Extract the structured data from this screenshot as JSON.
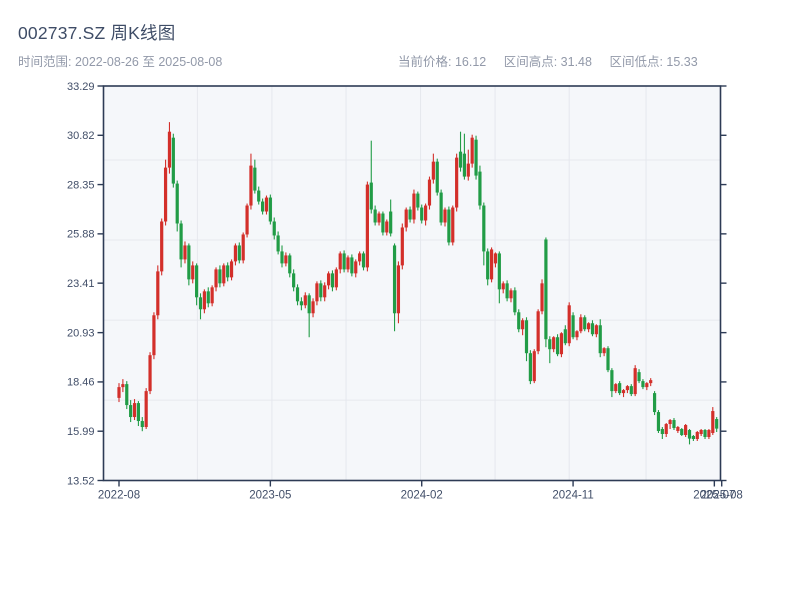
{
  "header": {
    "title": "002737.SZ 周K线图",
    "subtitle": "时间范围: 2022-08-26 至 2025-08-08",
    "stats": [
      "当前价格: 16.12",
      "区间高点: 31.48",
      "区间低点: 15.33"
    ]
  },
  "colors": {
    "up": "#d32f2a",
    "down": "#219c46",
    "plot_bg": "#f5f7fa",
    "grid": "#e6e8ee",
    "spine": "#2d3b55",
    "tick_label": "#414e68",
    "title_text": "#3e4c66",
    "muted_text": "#9299a9"
  },
  "chart_data": {
    "type": "candlestick",
    "symbol": "002737.SZ",
    "period": "weekly",
    "title": "002737.SZ 周K线图",
    "date_start": "2022-08-26",
    "date_end": "2025-08-08",
    "current_price": 16.12,
    "range_high": 31.48,
    "range_low": 15.33,
    "up_color_means": "close >= open (red, CN convention)",
    "ylim": [
      13.52,
      33.29
    ],
    "y_ticks": [
      33.29,
      30.82,
      28.35,
      25.88,
      23.41,
      20.93,
      18.46,
      15.99,
      13.52
    ],
    "x_ticks": [
      {
        "label": "2022-08",
        "week": 0
      },
      {
        "label": "2023-05",
        "week": 39
      },
      {
        "label": "2024-02",
        "week": 78
      },
      {
        "label": "2024-11",
        "week": 117
      },
      {
        "label": "2025-07",
        "week": 153.4
      },
      {
        "label": "2025-08",
        "week": 155.3
      }
    ],
    "grid_h_values": [
      29.58,
      25.57,
      21.56,
      17.55
    ],
    "grid_v_weeks": [
      20.2,
      39.4,
      58.5,
      77.7,
      96.9,
      116.0,
      135.8
    ],
    "candles_format": [
      "open",
      "high",
      "low",
      "close"
    ],
    "candles": [
      [
        17.66,
        18.4,
        17.45,
        18.2
      ],
      [
        18.2,
        18.6,
        17.95,
        18.35
      ],
      [
        18.35,
        18.5,
        17.1,
        17.3
      ],
      [
        17.3,
        17.55,
        16.45,
        16.7
      ],
      [
        16.7,
        17.6,
        16.55,
        17.4
      ],
      [
        17.4,
        17.5,
        16.25,
        16.5
      ],
      [
        16.5,
        16.7,
        15.99,
        16.2
      ],
      [
        16.2,
        18.15,
        16.1,
        18.0
      ],
      [
        18.0,
        19.95,
        17.85,
        19.8
      ],
      [
        19.8,
        21.95,
        19.6,
        21.8
      ],
      [
        21.8,
        24.3,
        21.6,
        24.0
      ],
      [
        24.0,
        26.65,
        23.8,
        26.5
      ],
      [
        26.5,
        29.6,
        26.3,
        29.2
      ],
      [
        29.2,
        31.48,
        28.9,
        31.0
      ],
      [
        30.7,
        30.9,
        28.2,
        28.4
      ],
      [
        28.4,
        28.55,
        26.0,
        26.4
      ],
      [
        26.4,
        26.55,
        24.2,
        24.6
      ],
      [
        24.6,
        25.5,
        24.4,
        25.3
      ],
      [
        25.3,
        25.4,
        23.3,
        23.6
      ],
      [
        23.6,
        24.5,
        23.4,
        24.3
      ],
      [
        24.3,
        24.4,
        22.3,
        22.7
      ],
      [
        22.7,
        22.9,
        21.6,
        22.1
      ],
      [
        22.1,
        23.1,
        21.9,
        23.0
      ],
      [
        23.0,
        23.2,
        22.2,
        22.4
      ],
      [
        22.4,
        23.3,
        22.25,
        23.2
      ],
      [
        23.2,
        24.2,
        23.0,
        24.1
      ],
      [
        24.1,
        24.3,
        23.2,
        23.4
      ],
      [
        23.4,
        24.4,
        23.25,
        24.3
      ],
      [
        24.3,
        24.45,
        23.5,
        23.7
      ],
      [
        23.7,
        24.6,
        23.55,
        24.5
      ],
      [
        24.5,
        25.4,
        24.3,
        25.3
      ],
      [
        25.3,
        25.45,
        24.4,
        24.55
      ],
      [
        24.55,
        25.95,
        24.4,
        25.85
      ],
      [
        25.85,
        27.4,
        25.7,
        27.3
      ],
      [
        27.3,
        29.9,
        27.1,
        29.3
      ],
      [
        29.2,
        29.6,
        27.9,
        28.05
      ],
      [
        28.05,
        28.25,
        27.35,
        27.5
      ],
      [
        27.5,
        27.65,
        26.85,
        27.0
      ],
      [
        27.0,
        27.8,
        26.85,
        27.7
      ],
      [
        27.7,
        27.85,
        26.35,
        26.5
      ],
      [
        26.5,
        26.7,
        25.6,
        25.8
      ],
      [
        25.8,
        26.0,
        24.85,
        25.0
      ],
      [
        25.0,
        25.3,
        24.2,
        24.4
      ],
      [
        24.4,
        24.95,
        24.25,
        24.8
      ],
      [
        24.8,
        24.9,
        23.7,
        23.9
      ],
      [
        23.9,
        24.1,
        23.0,
        23.2
      ],
      [
        23.2,
        23.35,
        22.3,
        22.5
      ],
      [
        22.5,
        22.7,
        22.05,
        22.3
      ],
      [
        22.3,
        22.95,
        22.15,
        22.8
      ],
      [
        22.8,
        22.9,
        20.7,
        21.9
      ],
      [
        21.9,
        22.65,
        21.7,
        22.5
      ],
      [
        22.5,
        23.5,
        22.3,
        23.4
      ],
      [
        23.4,
        23.55,
        22.5,
        22.7
      ],
      [
        22.7,
        23.45,
        22.5,
        23.3
      ],
      [
        23.3,
        24.0,
        23.1,
        23.9
      ],
      [
        23.9,
        24.05,
        23.0,
        23.2
      ],
      [
        23.2,
        24.2,
        23.05,
        24.1
      ],
      [
        24.1,
        25.0,
        23.9,
        24.9
      ],
      [
        24.9,
        25.05,
        23.95,
        24.1
      ],
      [
        24.1,
        24.8,
        23.95,
        24.7
      ],
      [
        24.7,
        24.85,
        23.75,
        23.9
      ],
      [
        23.9,
        24.6,
        23.7,
        24.5
      ],
      [
        24.5,
        25.0,
        24.3,
        24.9
      ],
      [
        24.9,
        25.0,
        24.05,
        24.2
      ],
      [
        24.2,
        28.5,
        24.0,
        28.35
      ],
      [
        28.45,
        30.55,
        26.9,
        27.1
      ],
      [
        27.1,
        27.3,
        26.3,
        26.45
      ],
      [
        26.45,
        27.0,
        26.3,
        26.9
      ],
      [
        26.9,
        27.0,
        25.8,
        25.95
      ],
      [
        25.95,
        26.6,
        25.8,
        26.5
      ],
      [
        27.0,
        27.6,
        25.75,
        25.9
      ],
      [
        25.3,
        25.4,
        21.0,
        21.9
      ],
      [
        21.9,
        24.5,
        21.4,
        24.3
      ],
      [
        24.3,
        26.4,
        24.1,
        26.2
      ],
      [
        26.2,
        27.2,
        26.0,
        27.1
      ],
      [
        27.1,
        27.25,
        26.45,
        26.6
      ],
      [
        26.6,
        28.1,
        26.4,
        27.9
      ],
      [
        27.9,
        28.0,
        27.05,
        27.2
      ],
      [
        27.2,
        27.35,
        26.4,
        26.55
      ],
      [
        26.55,
        27.4,
        26.3,
        27.3
      ],
      [
        27.3,
        28.75,
        27.1,
        28.6
      ],
      [
        28.6,
        29.9,
        28.4,
        29.5
      ],
      [
        29.5,
        29.65,
        27.8,
        27.95
      ],
      [
        27.95,
        28.1,
        26.3,
        26.45
      ],
      [
        26.45,
        27.2,
        26.25,
        27.1
      ],
      [
        27.1,
        27.25,
        25.3,
        25.45
      ],
      [
        25.45,
        27.3,
        25.3,
        27.2
      ],
      [
        27.2,
        29.9,
        27.0,
        29.7
      ],
      [
        30.0,
        31.0,
        29.0,
        29.2
      ],
      [
        29.9,
        30.9,
        28.6,
        28.75
      ],
      [
        28.75,
        30.1,
        28.55,
        29.4
      ],
      [
        29.4,
        30.85,
        29.2,
        30.7
      ],
      [
        30.6,
        30.8,
        28.6,
        28.8
      ],
      [
        29.0,
        29.3,
        27.1,
        27.3
      ],
      [
        27.3,
        27.45,
        24.3,
        25.0
      ],
      [
        25.0,
        25.15,
        23.3,
        23.6
      ],
      [
        23.6,
        25.2,
        23.45,
        25.1
      ],
      [
        24.4,
        24.95,
        24.2,
        24.9
      ],
      [
        24.9,
        25.0,
        22.4,
        23.1
      ],
      [
        23.1,
        23.5,
        22.9,
        23.4
      ],
      [
        23.4,
        23.55,
        22.5,
        22.65
      ],
      [
        22.65,
        23.15,
        22.45,
        23.05
      ],
      [
        23.05,
        23.2,
        21.8,
        21.95
      ],
      [
        21.95,
        22.1,
        20.95,
        21.1
      ],
      [
        21.1,
        21.65,
        20.8,
        21.55
      ],
      [
        21.55,
        21.7,
        19.5,
        19.9
      ],
      [
        19.9,
        20.05,
        18.35,
        18.5
      ],
      [
        18.5,
        20.1,
        18.4,
        20.0
      ],
      [
        20.0,
        22.1,
        19.85,
        22.0
      ],
      [
        22.0,
        23.6,
        21.85,
        23.4
      ],
      [
        25.6,
        25.7,
        20.2,
        20.6
      ],
      [
        20.6,
        20.75,
        19.4,
        20.1
      ],
      [
        20.1,
        20.75,
        19.95,
        20.7
      ],
      [
        20.7,
        20.85,
        19.75,
        19.85
      ],
      [
        19.85,
        20.95,
        19.7,
        20.9
      ],
      [
        21.1,
        21.3,
        20.3,
        20.4
      ],
      [
        20.4,
        22.45,
        20.25,
        22.3
      ],
      [
        21.8,
        21.95,
        20.6,
        20.7
      ],
      [
        20.7,
        21.05,
        20.55,
        21.0
      ],
      [
        21.0,
        21.85,
        20.9,
        21.7
      ],
      [
        21.7,
        21.8,
        21.0,
        21.1
      ],
      [
        21.1,
        21.45,
        20.95,
        21.4
      ],
      [
        21.4,
        21.55,
        20.75,
        20.85
      ],
      [
        20.85,
        21.35,
        20.7,
        21.3
      ],
      [
        21.3,
        21.6,
        19.7,
        19.9
      ],
      [
        19.9,
        20.2,
        19.75,
        20.15
      ],
      [
        20.15,
        20.25,
        18.95,
        19.05
      ],
      [
        19.05,
        19.15,
        17.7,
        18.0
      ],
      [
        18.0,
        18.4,
        17.9,
        18.35
      ],
      [
        18.4,
        18.5,
        17.8,
        17.9
      ],
      [
        17.9,
        18.1,
        17.7,
        18.05
      ],
      [
        18.05,
        18.3,
        17.9,
        18.25
      ],
      [
        18.25,
        18.35,
        17.75,
        17.85
      ],
      [
        17.85,
        19.3,
        17.75,
        19.15
      ],
      [
        18.95,
        19.1,
        18.4,
        18.5
      ],
      [
        18.5,
        18.6,
        18.1,
        18.2
      ],
      [
        18.2,
        18.45,
        18.05,
        18.4
      ],
      [
        18.4,
        18.65,
        18.25,
        18.55
      ],
      [
        17.9,
        18.0,
        16.8,
        16.95
      ],
      [
        16.95,
        17.05,
        15.9,
        16.0
      ],
      [
        16.1,
        16.2,
        15.6,
        15.85
      ],
      [
        15.85,
        16.4,
        15.7,
        16.35
      ],
      [
        16.35,
        16.6,
        16.1,
        16.55
      ],
      [
        16.55,
        16.65,
        16.05,
        16.15
      ],
      [
        16.0,
        16.25,
        15.9,
        16.2
      ],
      [
        16.1,
        16.15,
        15.75,
        15.8
      ],
      [
        15.8,
        16.35,
        15.7,
        16.3
      ],
      [
        16.05,
        16.1,
        15.33,
        15.62
      ],
      [
        15.75,
        15.8,
        15.5,
        15.6
      ],
      [
        15.6,
        16.0,
        15.5,
        15.95
      ],
      [
        15.85,
        16.1,
        15.75,
        16.05
      ],
      [
        16.05,
        16.1,
        15.6,
        15.7
      ],
      [
        15.7,
        16.1,
        15.6,
        16.05
      ],
      [
        15.9,
        17.2,
        15.8,
        17.0
      ],
      [
        16.6,
        16.7,
        15.95,
        16.12
      ]
    ]
  }
}
